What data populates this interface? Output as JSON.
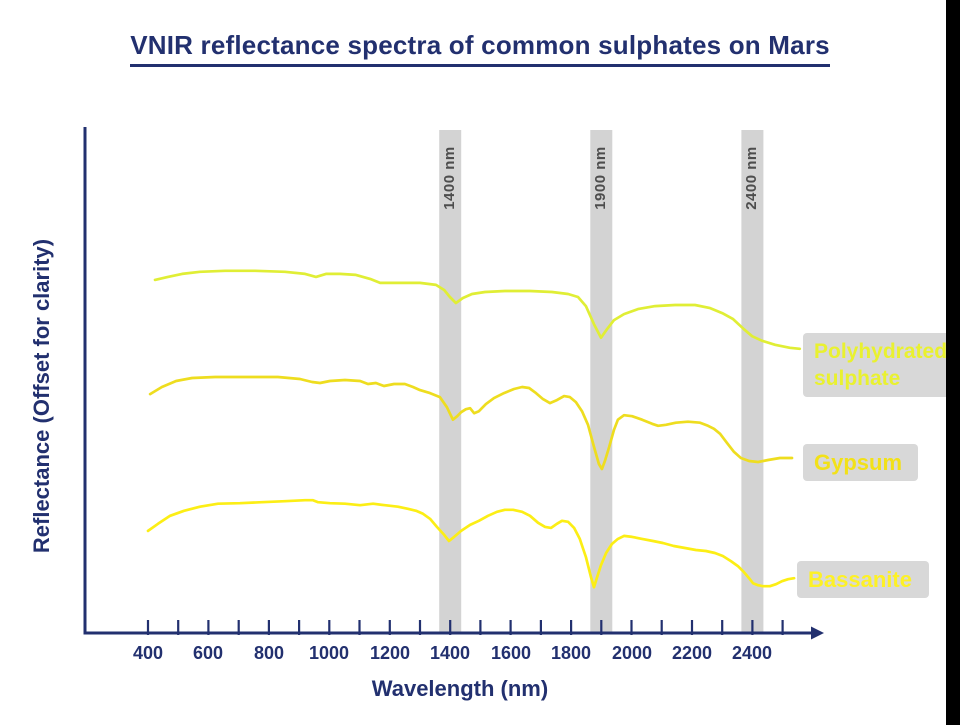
{
  "title": "VNIR reflectance spectra of common sulphates on Mars",
  "colors": {
    "navy": "#22306f",
    "band_fill": "#d3d3d3",
    "band_label_text": "#4d4d4d",
    "series_box_fill": "#d8d8d8",
    "right_bar": "#000000"
  },
  "chart_data": {
    "type": "line",
    "title": "VNIR reflectance spectra of common sulphates on Mars",
    "xlabel": "Wavelength (nm)",
    "ylabel": "Reflectance (Offset for clarity)",
    "grid": false,
    "legend_position": "right",
    "x_axis": {
      "min_nm": 400,
      "max_nm": 2500,
      "minor_tick_step_nm": 100,
      "labeled_ticks": [
        400,
        600,
        800,
        1000,
        1200,
        1400,
        1600,
        1800,
        2000,
        2200,
        2400
      ]
    },
    "y_axis": {
      "note": "arbitrary offset units, no numeric ticks shown",
      "range": [
        0,
        1
      ]
    },
    "absorption_bands": [
      {
        "label": "1400 nm",
        "wavelength_nm": 1400
      },
      {
        "label": "1900 nm",
        "wavelength_nm": 1900
      },
      {
        "label": "2400 nm",
        "wavelength_nm": 2400
      }
    ],
    "series": [
      {
        "name": "Polyhydrated sulphate",
        "label_lines": [
          "Polyhydrated",
          "sulphate"
        ],
        "color": "#e0ee35",
        "points": [
          [
            423,
            0.702
          ],
          [
            466,
            0.708
          ],
          [
            513,
            0.714
          ],
          [
            572,
            0.718
          ],
          [
            655,
            0.72
          ],
          [
            754,
            0.72
          ],
          [
            853,
            0.718
          ],
          [
            920,
            0.714
          ],
          [
            956,
            0.708
          ],
          [
            989,
            0.714
          ],
          [
            1035,
            0.714
          ],
          [
            1088,
            0.712
          ],
          [
            1135,
            0.704
          ],
          [
            1168,
            0.696
          ],
          [
            1234,
            0.696
          ],
          [
            1300,
            0.696
          ],
          [
            1353,
            0.692
          ],
          [
            1380,
            0.682
          ],
          [
            1399,
            0.668
          ],
          [
            1419,
            0.656
          ],
          [
            1442,
            0.666
          ],
          [
            1472,
            0.674
          ],
          [
            1515,
            0.678
          ],
          [
            1581,
            0.68
          ],
          [
            1664,
            0.68
          ],
          [
            1737,
            0.678
          ],
          [
            1790,
            0.674
          ],
          [
            1823,
            0.668
          ],
          [
            1849,
            0.65
          ],
          [
            1876,
            0.614
          ],
          [
            1899,
            0.587
          ],
          [
            1919,
            0.604
          ],
          [
            1942,
            0.622
          ],
          [
            1975,
            0.634
          ],
          [
            2021,
            0.644
          ],
          [
            2078,
            0.65
          ],
          [
            2144,
            0.652
          ],
          [
            2210,
            0.652
          ],
          [
            2260,
            0.646
          ],
          [
            2300,
            0.636
          ],
          [
            2336,
            0.624
          ],
          [
            2372,
            0.604
          ],
          [
            2399,
            0.59
          ],
          [
            2432,
            0.581
          ],
          [
            2475,
            0.573
          ],
          [
            2524,
            0.567
          ],
          [
            2557,
            0.565
          ]
        ]
      },
      {
        "name": "Gypsum",
        "label_lines": [
          "Gypsum"
        ],
        "color": "#eedd1f",
        "points": [
          [
            407,
            0.475
          ],
          [
            446,
            0.489
          ],
          [
            493,
            0.501
          ],
          [
            546,
            0.507
          ],
          [
            622,
            0.509
          ],
          [
            731,
            0.509
          ],
          [
            830,
            0.509
          ],
          [
            903,
            0.505
          ],
          [
            943,
            0.499
          ],
          [
            969,
            0.497
          ],
          [
            1002,
            0.501
          ],
          [
            1052,
            0.503
          ],
          [
            1102,
            0.501
          ],
          [
            1128,
            0.495
          ],
          [
            1154,
            0.497
          ],
          [
            1181,
            0.491
          ],
          [
            1214,
            0.495
          ],
          [
            1250,
            0.495
          ],
          [
            1277,
            0.489
          ],
          [
            1300,
            0.483
          ],
          [
            1333,
            0.477
          ],
          [
            1366,
            0.469
          ],
          [
            1389,
            0.449
          ],
          [
            1409,
            0.424
          ],
          [
            1423,
            0.431
          ],
          [
            1436,
            0.439
          ],
          [
            1452,
            0.445
          ],
          [
            1466,
            0.447
          ],
          [
            1479,
            0.437
          ],
          [
            1495,
            0.441
          ],
          [
            1518,
            0.455
          ],
          [
            1545,
            0.467
          ],
          [
            1578,
            0.477
          ],
          [
            1611,
            0.485
          ],
          [
            1638,
            0.489
          ],
          [
            1661,
            0.487
          ],
          [
            1684,
            0.477
          ],
          [
            1707,
            0.465
          ],
          [
            1730,
            0.457
          ],
          [
            1753,
            0.463
          ],
          [
            1777,
            0.471
          ],
          [
            1796,
            0.469
          ],
          [
            1816,
            0.459
          ],
          [
            1836,
            0.441
          ],
          [
            1856,
            0.414
          ],
          [
            1876,
            0.37
          ],
          [
            1892,
            0.336
          ],
          [
            1902,
            0.326
          ],
          [
            1912,
            0.342
          ],
          [
            1926,
            0.37
          ],
          [
            1942,
            0.404
          ],
          [
            1955,
            0.424
          ],
          [
            1975,
            0.433
          ],
          [
            2002,
            0.431
          ],
          [
            2035,
            0.424
          ],
          [
            2068,
            0.416
          ],
          [
            2088,
            0.412
          ],
          [
            2114,
            0.414
          ],
          [
            2147,
            0.418
          ],
          [
            2187,
            0.42
          ],
          [
            2227,
            0.418
          ],
          [
            2253,
            0.412
          ],
          [
            2273,
            0.406
          ],
          [
            2293,
            0.396
          ],
          [
            2316,
            0.378
          ],
          [
            2339,
            0.36
          ],
          [
            2362,
            0.348
          ],
          [
            2389,
            0.342
          ],
          [
            2419,
            0.34
          ],
          [
            2452,
            0.344
          ],
          [
            2491,
            0.348
          ],
          [
            2531,
            0.348
          ]
        ]
      },
      {
        "name": "Bassanite",
        "label_lines": [
          "Bassanite"
        ],
        "color": "#fcee15",
        "points": [
          [
            400,
            0.203
          ],
          [
            433,
            0.217
          ],
          [
            473,
            0.233
          ],
          [
            519,
            0.243
          ],
          [
            572,
            0.251
          ],
          [
            632,
            0.257
          ],
          [
            704,
            0.258
          ],
          [
            777,
            0.26
          ],
          [
            853,
            0.262
          ],
          [
            920,
            0.264
          ],
          [
            946,
            0.264
          ],
          [
            963,
            0.26
          ],
          [
            1002,
            0.258
          ],
          [
            1052,
            0.257
          ],
          [
            1102,
            0.254
          ],
          [
            1145,
            0.257
          ],
          [
            1184,
            0.254
          ],
          [
            1227,
            0.251
          ],
          [
            1260,
            0.247
          ],
          [
            1287,
            0.243
          ],
          [
            1310,
            0.237
          ],
          [
            1333,
            0.227
          ],
          [
            1356,
            0.211
          ],
          [
            1380,
            0.195
          ],
          [
            1396,
            0.183
          ],
          [
            1413,
            0.191
          ],
          [
            1436,
            0.203
          ],
          [
            1466,
            0.215
          ],
          [
            1495,
            0.223
          ],
          [
            1525,
            0.233
          ],
          [
            1555,
            0.241
          ],
          [
            1581,
            0.245
          ],
          [
            1608,
            0.245
          ],
          [
            1638,
            0.241
          ],
          [
            1664,
            0.233
          ],
          [
            1691,
            0.219
          ],
          [
            1714,
            0.211
          ],
          [
            1734,
            0.209
          ],
          [
            1753,
            0.217
          ],
          [
            1770,
            0.223
          ],
          [
            1790,
            0.221
          ],
          [
            1810,
            0.209
          ],
          [
            1829,
            0.187
          ],
          [
            1849,
            0.151
          ],
          [
            1866,
            0.111
          ],
          [
            1876,
            0.091
          ],
          [
            1886,
            0.111
          ],
          [
            1899,
            0.135
          ],
          [
            1916,
            0.159
          ],
          [
            1935,
            0.177
          ],
          [
            1955,
            0.187
          ],
          [
            1975,
            0.193
          ],
          [
            2002,
            0.191
          ],
          [
            2035,
            0.187
          ],
          [
            2071,
            0.183
          ],
          [
            2104,
            0.179
          ],
          [
            2140,
            0.173
          ],
          [
            2177,
            0.169
          ],
          [
            2213,
            0.165
          ],
          [
            2246,
            0.163
          ],
          [
            2276,
            0.159
          ],
          [
            2302,
            0.153
          ],
          [
            2329,
            0.143
          ],
          [
            2352,
            0.133
          ],
          [
            2372,
            0.121
          ],
          [
            2389,
            0.109
          ],
          [
            2402,
            0.099
          ],
          [
            2419,
            0.095
          ],
          [
            2435,
            0.093
          ],
          [
            2458,
            0.093
          ],
          [
            2478,
            0.097
          ],
          [
            2498,
            0.103
          ],
          [
            2518,
            0.107
          ],
          [
            2538,
            0.109
          ]
        ]
      }
    ]
  }
}
